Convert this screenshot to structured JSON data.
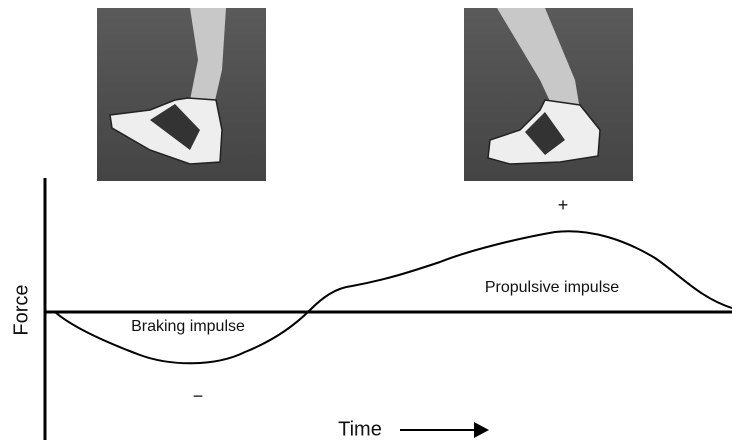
{
  "axes": {
    "y_label": "Force",
    "x_label": "Time"
  },
  "regions": {
    "braking": "Braking impulse",
    "propulsive": "Propulsive impulse"
  },
  "signs": {
    "positive": "+",
    "negative": "−"
  }
}
